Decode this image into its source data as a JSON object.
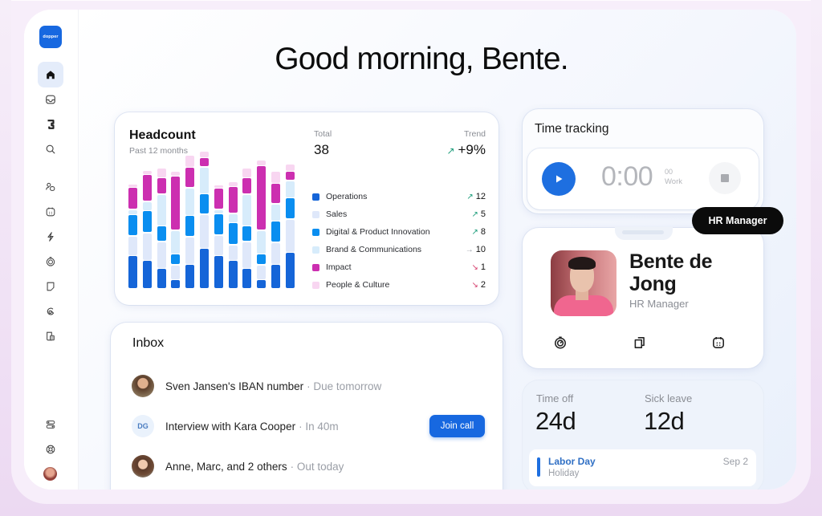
{
  "app": {
    "logo_text": "dopper",
    "greeting": "Good morning, Bente."
  },
  "sidebar": {
    "items": [
      {
        "name": "home",
        "icon": "home-icon",
        "active": true
      },
      {
        "name": "inbox",
        "icon": "inbox-icon"
      },
      {
        "name": "integrations",
        "icon": "puzzle-icon"
      },
      {
        "name": "search",
        "icon": "search-icon"
      },
      {
        "name": "people",
        "icon": "people-icon"
      },
      {
        "name": "calendar",
        "icon": "calendar-icon"
      },
      {
        "name": "automations",
        "icon": "lightning-icon"
      },
      {
        "name": "time-tracking",
        "icon": "stopwatch-icon"
      },
      {
        "name": "documents",
        "icon": "document-icon"
      },
      {
        "name": "payroll",
        "icon": "link-icon"
      },
      {
        "name": "reports",
        "icon": "reports-icon"
      }
    ],
    "bottom_items": [
      {
        "name": "settings",
        "icon": "toggles-icon"
      },
      {
        "name": "help",
        "icon": "lifebuoy-icon"
      },
      {
        "name": "profile",
        "icon": "avatar"
      }
    ]
  },
  "headcount": {
    "title": "Headcount",
    "subtitle": "Past 12 months",
    "total_label": "Total",
    "total_value": "38",
    "trend_label": "Trend",
    "trend_arrow": "↗",
    "trend_value": "+9%",
    "legend": [
      {
        "label": "Operations",
        "color": "#1565d8",
        "arrow": "↗",
        "dir": "up",
        "value": "12"
      },
      {
        "label": "Sales",
        "color": "#dfe8fa",
        "arrow": "↗",
        "dir": "up",
        "value": "5"
      },
      {
        "label": "Digital & Product Innovation",
        "color": "#0a8ef0",
        "arrow": "↗",
        "dir": "up",
        "value": "8"
      },
      {
        "label": "Brand & Communications",
        "color": "#d7ecfb",
        "arrow": "→",
        "dir": "flat",
        "value": "10"
      },
      {
        "label": "Impact",
        "color": "#cc2fb0",
        "arrow": "↘",
        "dir": "down",
        "value": "1"
      },
      {
        "label": "People & Culture",
        "color": "#f8d6f1",
        "arrow": "↘",
        "dir": "down",
        "value": "2"
      }
    ]
  },
  "chart_data": {
    "type": "bar",
    "stacked": true,
    "title": "Headcount",
    "subtitle": "Past 12 months",
    "categories": [
      "M1",
      "M2",
      "M3",
      "M4",
      "M5",
      "M6",
      "M7",
      "M8",
      "M9",
      "M10",
      "M11",
      "M12"
    ],
    "series": [
      {
        "name": "Operations",
        "color": "#1565d8",
        "values": [
          40,
          34,
          24,
          10,
          29,
          49,
          40,
          34,
          24,
          10,
          29,
          44
        ]
      },
      {
        "name": "Sales",
        "color": "#dfe8fa",
        "values": [
          23,
          33,
          32,
          17,
          33,
          41,
          24,
          18,
          32,
          17,
          26,
          40
        ]
      },
      {
        "name": "Digital & Product Innovation",
        "color": "#0a8ef0",
        "values": [
          25,
          26,
          18,
          12,
          25,
          24,
          25,
          26,
          18,
          12,
          25,
          25
        ]
      },
      {
        "name": "Brand & Communications",
        "color": "#d7ecfb",
        "values": [
          5,
          10,
          38,
          28,
          33,
          32,
          4,
          10,
          38,
          28,
          20,
          20
        ]
      },
      {
        "name": "Impact",
        "color": "#cc2fb0",
        "values": [
          26,
          32,
          19,
          66,
          24,
          10,
          25,
          32,
          19,
          79,
          24,
          10
        ]
      },
      {
        "name": "People & Culture",
        "color": "#f8d6f1",
        "values": [
          3,
          4,
          11,
          5,
          14,
          7,
          3,
          5,
          11,
          6,
          14,
          8
        ]
      }
    ],
    "units": "relative pixel height (no axis shown)",
    "grid": false,
    "legend_position": "right"
  },
  "inbox": {
    "title": "Inbox",
    "items": [
      {
        "avatar": "photo",
        "title": "Sven Jansen's IBAN number",
        "meta": "· Due tomorrow"
      },
      {
        "avatar": "initials",
        "initials": "DG",
        "title": "Interview with Kara Cooper",
        "meta": "· In 40m",
        "action": "Join call"
      },
      {
        "avatar": "photo",
        "title": "Anne, Marc, and 2 others",
        "meta": "· Out today"
      }
    ]
  },
  "time_tracking": {
    "title": "Time tracking",
    "timer": "0:00",
    "seconds": "00",
    "label": "Work"
  },
  "tooltip": {
    "text": "HR Manager"
  },
  "profile": {
    "name": "Bente de Jong",
    "role": "HR Manager",
    "actions": [
      "stopwatch-icon",
      "copy-icon",
      "calendar-icon"
    ]
  },
  "leave": {
    "time_off_label": "Time off",
    "time_off_value": "24d",
    "sick_leave_label": "Sick leave",
    "sick_leave_value": "12d",
    "holiday": {
      "name": "Labor Day",
      "type": "Holiday",
      "date": "Sep 2"
    }
  }
}
